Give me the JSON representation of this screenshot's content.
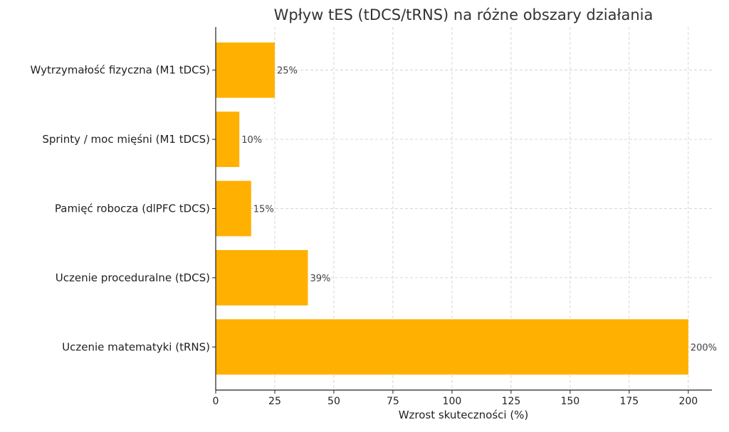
{
  "chart_data": {
    "type": "bar",
    "orientation": "horizontal",
    "title": "Wpływ tES (tDCS/tRNS) na różne obszary działania",
    "xlabel": "Wzrost skuteczności (%)",
    "ylabel": "",
    "categories": [
      "Uczenie matematyki (tRNS)",
      "Uczenie proceduralne (tDCS)",
      "Pamięć robocza (dlPFC tDCS)",
      "Sprinty / moc mięśni (M1 tDCS)",
      "Wytrzymałość fizyczna (M1 tDCS)"
    ],
    "values": [
      200,
      39,
      15,
      10,
      25
    ],
    "value_labels": [
      "200%",
      "39%",
      "15%",
      "10%",
      "25%"
    ],
    "xlim": [
      0,
      210
    ],
    "xticks": [
      0,
      25,
      50,
      75,
      100,
      125,
      150,
      175,
      200
    ],
    "grid": true,
    "bar_color": "#FFB000"
  }
}
